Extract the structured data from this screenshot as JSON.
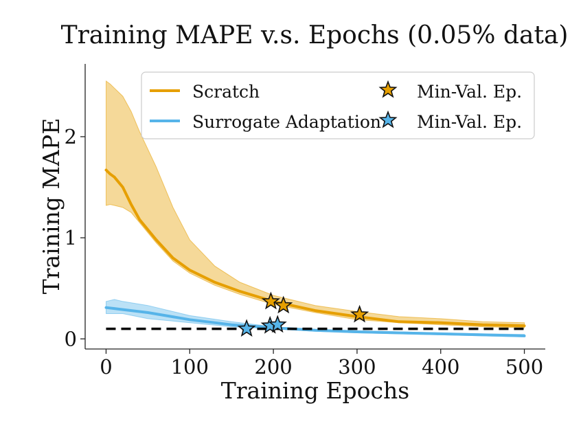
{
  "chart_data": {
    "type": "line",
    "title": "Training MAPE v.s. Epochs (0.05% data)",
    "xlabel": "Training Epochs",
    "ylabel": "Training MAPE",
    "xlim": [
      -25,
      525
    ],
    "ylim": [
      -0.1,
      2.72
    ],
    "xticks": [
      0,
      100,
      200,
      300,
      400,
      500
    ],
    "yticks": [
      0,
      1,
      2
    ],
    "xtick_labels": [
      "0",
      "100",
      "200",
      "300",
      "400",
      "500"
    ],
    "ytick_labels": [
      "0",
      "1",
      "2"
    ],
    "grid": false,
    "legend_position": "top-right",
    "reference_line": {
      "y": 0.1,
      "style": "dashed",
      "color": "#000000"
    },
    "series": [
      {
        "name": "Scratch",
        "color": "#E69F00",
        "x": [
          0,
          5,
          10,
          20,
          30,
          40,
          60,
          80,
          100,
          130,
          160,
          200,
          250,
          300,
          350,
          400,
          450,
          500
        ],
        "y": [
          1.67,
          1.63,
          1.6,
          1.5,
          1.33,
          1.18,
          0.98,
          0.8,
          0.68,
          0.56,
          0.47,
          0.37,
          0.28,
          0.22,
          0.17,
          0.16,
          0.14,
          0.13
        ],
        "band_upper": [
          2.55,
          2.52,
          2.48,
          2.4,
          2.25,
          2.05,
          1.7,
          1.3,
          0.98,
          0.72,
          0.56,
          0.43,
          0.33,
          0.27,
          0.22,
          0.2,
          0.17,
          0.16
        ],
        "band_lower": [
          1.32,
          1.33,
          1.32,
          1.3,
          1.25,
          1.15,
          0.95,
          0.77,
          0.65,
          0.53,
          0.44,
          0.34,
          0.26,
          0.19,
          0.16,
          0.14,
          0.12,
          0.11
        ],
        "min_val_epochs": [
          {
            "x": 197,
            "y": 0.37
          },
          {
            "x": 212,
            "y": 0.33
          },
          {
            "x": 303,
            "y": 0.24
          }
        ]
      },
      {
        "name": "Surrogate Adaptation",
        "color": "#56B4E9",
        "x": [
          0,
          10,
          20,
          50,
          100,
          150,
          200,
          250,
          300,
          350,
          400,
          450,
          500
        ],
        "y": [
          0.31,
          0.3,
          0.29,
          0.26,
          0.19,
          0.14,
          0.11,
          0.085,
          0.07,
          0.06,
          0.05,
          0.04,
          0.03
        ],
        "band_upper": [
          0.37,
          0.39,
          0.37,
          0.33,
          0.23,
          0.17,
          0.12,
          0.095,
          0.08,
          0.07,
          0.06,
          0.05,
          0.045
        ],
        "band_lower": [
          0.25,
          0.25,
          0.25,
          0.2,
          0.16,
          0.12,
          0.1,
          0.075,
          0.06,
          0.05,
          0.04,
          0.03,
          0.02
        ],
        "min_val_epochs": [
          {
            "x": 168,
            "y": 0.1
          },
          {
            "x": 196,
            "y": 0.13
          },
          {
            "x": 205,
            "y": 0.14
          }
        ]
      }
    ],
    "legend": {
      "entries": [
        {
          "label": "Scratch",
          "marker": "line",
          "color": "#E69F00"
        },
        {
          "label": "Min-Val. Ep.",
          "marker": "star",
          "color": "#E69F00"
        },
        {
          "label": "Surrogate Adaptation",
          "marker": "line",
          "color": "#56B4E9"
        },
        {
          "label": "Min-Val. Ep.",
          "marker": "star",
          "color": "#56B4E9"
        }
      ]
    }
  }
}
